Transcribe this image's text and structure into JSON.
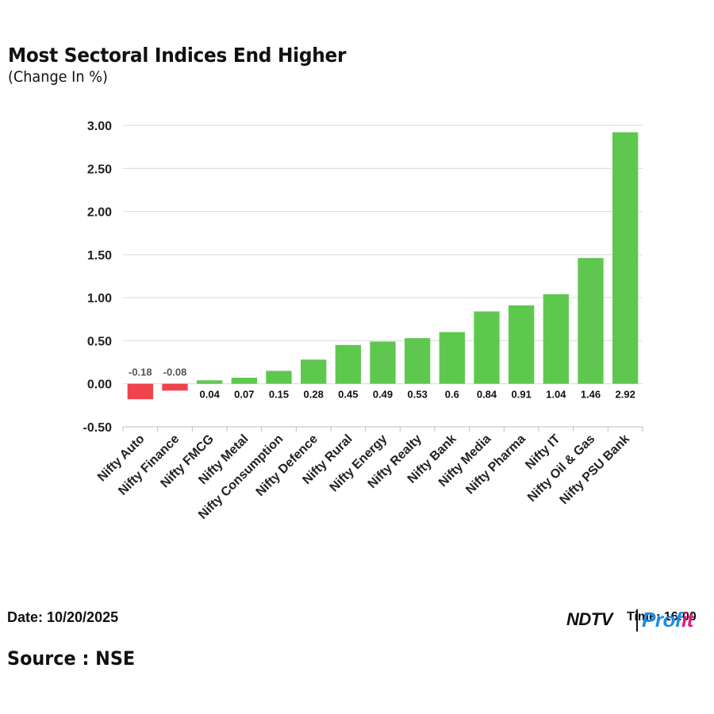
{
  "header": {
    "title": "Most Sectoral Indices End Higher",
    "subtitle": "(Change In %)"
  },
  "footer": {
    "date": "Date: 10/20/2025",
    "time": "Time: 16:00",
    "source": "Source : NSE",
    "logo_text": "NDTV Profit"
  },
  "colors": {
    "positive": "#5ec84e",
    "negative": "#f0444c",
    "grid": "#d9d9d9",
    "brand_blue": "#1f8ce6",
    "brand_pink": "#e5197c"
  },
  "chart_data": {
    "type": "bar",
    "categories": [
      "Nifty Auto",
      "Nifty Finance",
      "Nifty FMCG",
      "Nifty Metal",
      "Nifty Consumption",
      "Nifty Defence",
      "Nifty Rural",
      "Nifty Energy",
      "Nifty Realty",
      "Nifty Bank",
      "Nifty Media",
      "Nifty Pharma",
      "Nifty IT",
      "Nifty Oil & Gas",
      "Nifty PSU Bank"
    ],
    "values": [
      -0.18,
      -0.08,
      0.04,
      0.07,
      0.15,
      0.28,
      0.45,
      0.49,
      0.53,
      0.6,
      0.84,
      0.91,
      1.04,
      1.46,
      2.92
    ],
    "data_labels": [
      "-0.18",
      "-0.08",
      "0.04",
      "0.07",
      "0.15",
      "0.28",
      "0.45",
      "0.49",
      "0.53",
      "0.6",
      "0.84",
      "0.91",
      "1.04",
      "1.46",
      "2.92"
    ],
    "yticks": [
      "3.00",
      "2.50",
      "2.00",
      "1.50",
      "1.00",
      "0.50",
      "0.00",
      "-0.50"
    ],
    "ylim": [
      -0.5,
      3.0
    ],
    "grid": true,
    "legend": "none"
  }
}
